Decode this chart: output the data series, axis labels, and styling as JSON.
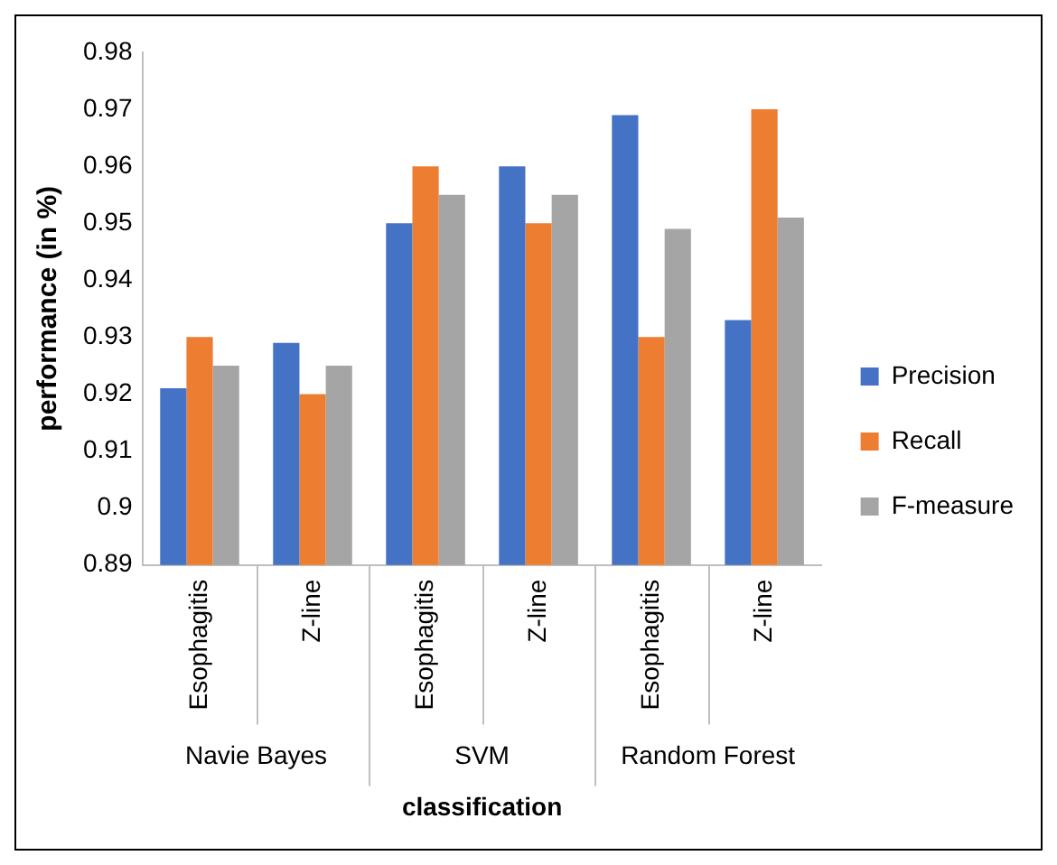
{
  "chart_data": {
    "type": "bar",
    "xlabel": "classification",
    "ylabel": "performance (in %)",
    "categories": [
      "Esophagitis",
      "Z-line",
      "Esophagitis",
      "Z-line",
      "Esophagitis",
      "Z-line"
    ],
    "annotations": [
      "Navie Bayes",
      "SVM",
      "Random Forest"
    ],
    "series": [
      {
        "name": "Precision",
        "color": "#4472c4",
        "values": [
          0.921,
          0.929,
          0.95,
          0.96,
          0.969,
          0.933
        ]
      },
      {
        "name": "Recall",
        "color": "#ed7d31",
        "values": [
          0.93,
          0.92,
          0.96,
          0.95,
          0.93,
          0.97
        ]
      },
      {
        "name": "F-measure",
        "color": "#a5a5a5",
        "values": [
          0.925,
          0.925,
          0.955,
          0.955,
          0.949,
          0.951
        ]
      }
    ],
    "ylim": [
      0.89,
      0.98
    ],
    "yticks": [
      0.89,
      0.9,
      0.91,
      0.92,
      0.93,
      0.94,
      0.95,
      0.96,
      0.97,
      0.98
    ],
    "grid": false,
    "legend": "right"
  }
}
